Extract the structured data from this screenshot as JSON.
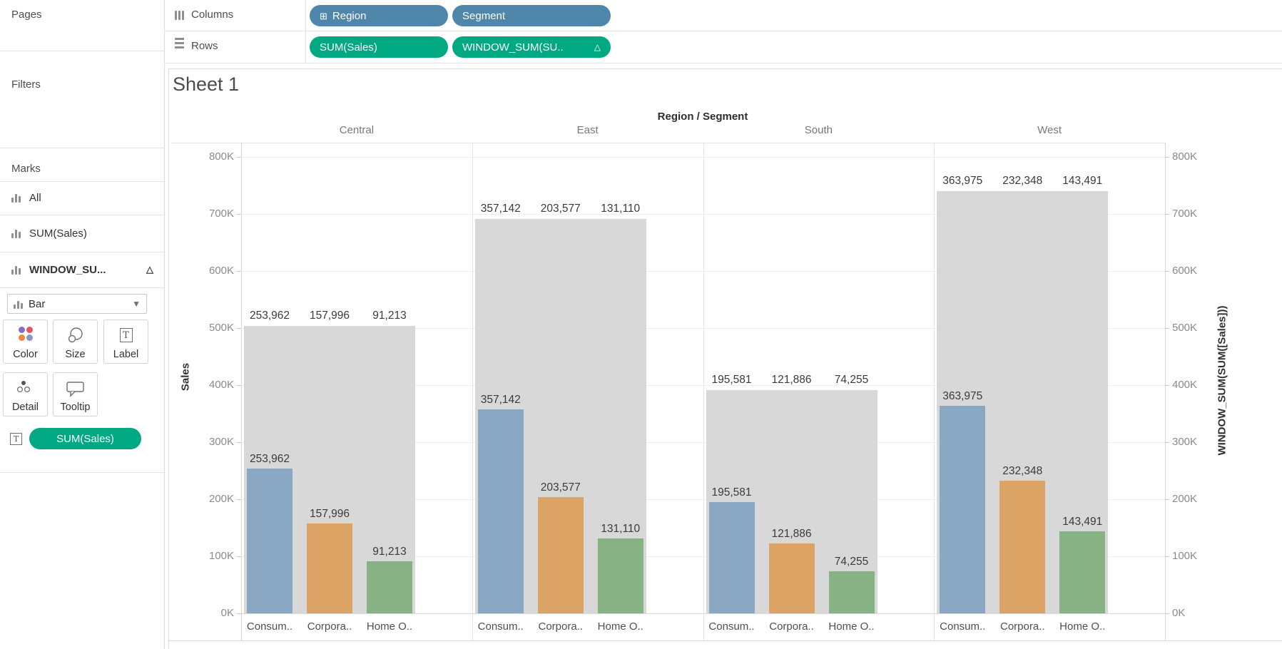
{
  "shelves": {
    "columns_label": "Columns",
    "rows_label": "Rows",
    "columns_pills": [
      {
        "label": "Region",
        "expand_icon": "⊞"
      },
      {
        "label": "Segment"
      }
    ],
    "rows_pills": [
      {
        "label": "SUM(Sales)"
      },
      {
        "label": "WINDOW_SUM(SU..",
        "delta": "△"
      }
    ]
  },
  "sidebar": {
    "pages_label": "Pages",
    "filters_label": "Filters",
    "marks": {
      "label": "Marks",
      "items": [
        {
          "label": "All"
        },
        {
          "label": "SUM(Sales)"
        },
        {
          "label": "WINDOW_SU...",
          "delta": "△"
        }
      ],
      "mark_type": "Bar",
      "buttons": {
        "color": "Color",
        "size": "Size",
        "label": "Label",
        "detail": "Detail",
        "tooltip": "Tooltip"
      },
      "label_pill": "SUM(Sales)"
    }
  },
  "sheet": {
    "title": "Sheet 1"
  },
  "chart_data": {
    "type": "bar",
    "title": "Sheet 1",
    "facet_header": "Region / Segment",
    "categories": [
      "Central",
      "East",
      "South",
      "West"
    ],
    "segments": [
      "Consumer",
      "Corporate",
      "Home Office"
    ],
    "segment_tick_labels": [
      "Consum..",
      "Corpora..",
      "Home O.."
    ],
    "series": [
      {
        "name": "Consumer",
        "values": [
          253962,
          357142,
          195581,
          363975
        ]
      },
      {
        "name": "Corporate",
        "values": [
          157996,
          203577,
          121886,
          232348
        ]
      },
      {
        "name": "Home Office",
        "values": [
          91213,
          131110,
          74255,
          143491
        ]
      }
    ],
    "window_sums": [
      503171,
      691829,
      391722,
      739814
    ],
    "y_axis": {
      "label": "Sales",
      "ticks_k": [
        0,
        100,
        200,
        300,
        400,
        500,
        600,
        700,
        800
      ],
      "max": 800000
    },
    "y2_axis": {
      "label": "WINDOW_SUM(SUM([Sales]))",
      "ticks_k": [
        0,
        100,
        200,
        300,
        400,
        500,
        600,
        700,
        800
      ]
    },
    "colors": {
      "consumer": "#8aa7c3",
      "corporate": "#dba464",
      "home_office": "#87b283",
      "window_sum": "#d8d8d8",
      "dimension_pill": "#4e87a9",
      "measure_pill": "#00a982"
    },
    "grid": true,
    "legend": "none"
  }
}
